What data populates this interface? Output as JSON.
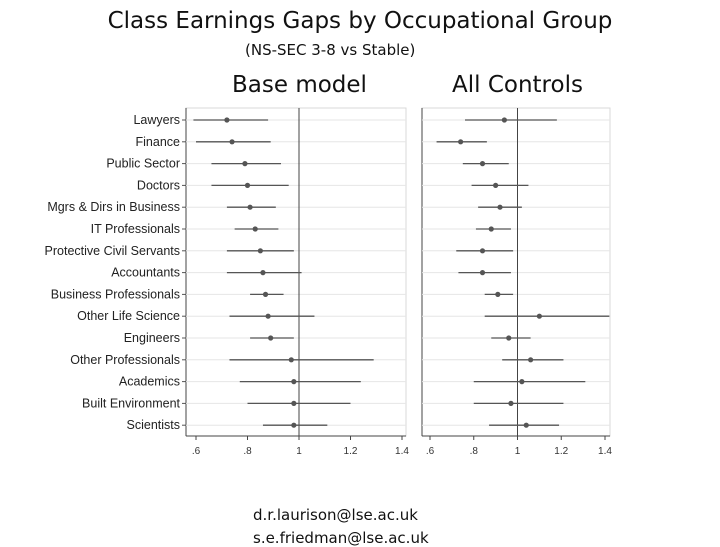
{
  "header": {
    "title": "Class Earnings Gaps by Occupational Group",
    "subtitle": "(NS-SEC 3-8 vs Stable)"
  },
  "footer": {
    "emails": [
      "d.r.laurison@lse.ac.uk",
      "s.e.friedman@lse.ac.uk"
    ]
  },
  "chart_data": {
    "type": "scatter",
    "title": "Class Earnings Gaps by Occupational Group",
    "subtitle": "(NS-SEC 3-8 vs Stable)",
    "categories": [
      "Lawyers",
      "Finance",
      "Public Sector",
      "Doctors",
      "Mgrs & Dirs in Business",
      "IT Professionals",
      "Protective Civil Servants",
      "Accountants",
      "Business Professionals",
      "Other Life Science",
      "Engineers",
      "Other Professionals",
      "Academics",
      "Built Environment",
      "Scientists"
    ],
    "reference_line": 1,
    "panels": [
      {
        "title": "Base model",
        "xlim": [
          0.6,
          1.4
        ],
        "xticks": [
          0.6,
          0.8,
          1,
          1.2,
          1.4
        ],
        "xtick_labels": [
          ".6",
          ".8",
          "1",
          "1.2",
          "1.4"
        ],
        "estimate": [
          0.72,
          0.74,
          0.79,
          0.8,
          0.81,
          0.83,
          0.85,
          0.86,
          0.87,
          0.88,
          0.89,
          0.97,
          0.98,
          0.98,
          0.98
        ],
        "ci_low": [
          0.59,
          0.6,
          0.66,
          0.66,
          0.72,
          0.75,
          0.72,
          0.72,
          0.81,
          0.73,
          0.81,
          0.73,
          0.77,
          0.8,
          0.86
        ],
        "ci_high": [
          0.88,
          0.89,
          0.93,
          0.96,
          0.91,
          0.92,
          0.98,
          1.01,
          0.94,
          1.06,
          0.98,
          1.29,
          1.24,
          1.2,
          1.11
        ]
      },
      {
        "title": "All Controls",
        "xlim": [
          0.6,
          1.4
        ],
        "xticks": [
          0.6,
          0.8,
          1,
          1.2,
          1.4
        ],
        "xtick_labels": [
          ".6",
          ".8",
          "1",
          "1.2",
          "1.4"
        ],
        "estimate": [
          0.94,
          0.74,
          0.84,
          0.9,
          0.92,
          0.88,
          0.84,
          0.84,
          0.91,
          1.1,
          0.96,
          1.06,
          1.02,
          0.97,
          1.04
        ],
        "ci_low": [
          0.76,
          0.63,
          0.75,
          0.79,
          0.82,
          0.81,
          0.72,
          0.73,
          0.85,
          0.85,
          0.88,
          0.93,
          0.8,
          0.8,
          0.87
        ],
        "ci_high": [
          1.18,
          0.86,
          0.96,
          1.05,
          1.02,
          0.97,
          0.98,
          0.97,
          0.98,
          1.42,
          1.06,
          1.21,
          1.31,
          1.21,
          1.19
        ]
      }
    ]
  }
}
